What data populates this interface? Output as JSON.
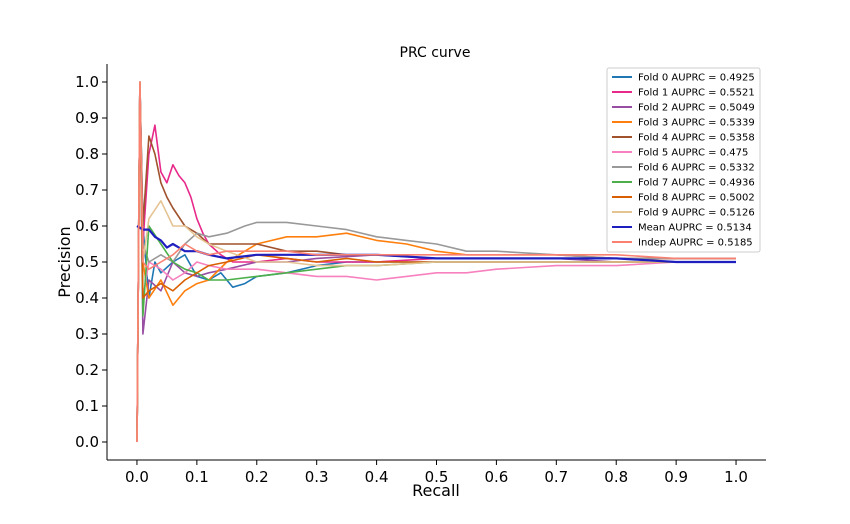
{
  "chart_data": {
    "type": "line",
    "title": "PRC curve",
    "xlabel": "Recall",
    "ylabel": "Precision",
    "xlim": [
      -0.05,
      1.05
    ],
    "ylim": [
      -0.05,
      1.05
    ],
    "xticks": [
      "0.0",
      "0.1",
      "0.2",
      "0.3",
      "0.4",
      "0.5",
      "0.6",
      "0.7",
      "0.8",
      "0.9",
      "1.0"
    ],
    "yticks": [
      "0.0",
      "0.1",
      "0.2",
      "0.3",
      "0.4",
      "0.5",
      "0.6",
      "0.7",
      "0.8",
      "0.9",
      "1.0"
    ],
    "grid": false,
    "legend_position": "top-right",
    "series": [
      {
        "name": "Fold 0 AUPRC = 0.4925",
        "color": "#1f77b4",
        "x": [
          0,
          0.005,
          0.01,
          0.02,
          0.03,
          0.04,
          0.06,
          0.08,
          0.1,
          0.12,
          0.14,
          0.16,
          0.18,
          0.2,
          0.25,
          0.3,
          0.35,
          0.4,
          0.5,
          0.6,
          0.7,
          0.8,
          0.9,
          1.0
        ],
        "y": [
          0.0,
          1.0,
          0.6,
          0.4,
          0.5,
          0.47,
          0.5,
          0.52,
          0.46,
          0.45,
          0.47,
          0.43,
          0.44,
          0.46,
          0.47,
          0.49,
          0.5,
          0.5,
          0.5,
          0.5,
          0.5,
          0.5,
          0.5,
          0.5
        ]
      },
      {
        "name": "Fold 1 AUPRC = 0.5521",
        "color": "#e7298a",
        "x": [
          0,
          0.005,
          0.01,
          0.02,
          0.03,
          0.04,
          0.05,
          0.06,
          0.07,
          0.08,
          0.09,
          0.1,
          0.11,
          0.12,
          0.14,
          0.16,
          0.2,
          0.25,
          0.3,
          0.4,
          0.5,
          0.6,
          0.7,
          0.8,
          0.9,
          1.0
        ],
        "y": [
          0.0,
          1.0,
          0.55,
          0.8,
          0.88,
          0.75,
          0.72,
          0.77,
          0.74,
          0.72,
          0.68,
          0.62,
          0.58,
          0.55,
          0.52,
          0.5,
          0.5,
          0.51,
          0.5,
          0.5,
          0.51,
          0.51,
          0.51,
          0.51,
          0.51,
          0.51
        ]
      },
      {
        "name": "Fold 2 AUPRC = 0.5049",
        "color": "#984ea3",
        "x": [
          0,
          0.005,
          0.01,
          0.02,
          0.04,
          0.06,
          0.08,
          0.1,
          0.12,
          0.15,
          0.2,
          0.25,
          0.3,
          0.4,
          0.5,
          0.6,
          0.7,
          0.8,
          0.9,
          1.0
        ],
        "y": [
          0.0,
          1.0,
          0.3,
          0.45,
          0.42,
          0.5,
          0.47,
          0.46,
          0.47,
          0.48,
          0.5,
          0.5,
          0.51,
          0.52,
          0.51,
          0.51,
          0.51,
          0.5,
          0.5,
          0.5
        ]
      },
      {
        "name": "Fold 3 AUPRC = 0.5339",
        "color": "#ff7f0e",
        "x": [
          0,
          0.005,
          0.01,
          0.02,
          0.04,
          0.06,
          0.08,
          0.1,
          0.12,
          0.15,
          0.2,
          0.25,
          0.3,
          0.35,
          0.4,
          0.45,
          0.5,
          0.55,
          0.6,
          0.7,
          0.8,
          0.9,
          1.0
        ],
        "y": [
          0.0,
          1.0,
          0.5,
          0.4,
          0.45,
          0.38,
          0.42,
          0.44,
          0.45,
          0.5,
          0.55,
          0.57,
          0.57,
          0.58,
          0.56,
          0.55,
          0.53,
          0.52,
          0.52,
          0.52,
          0.51,
          0.51,
          0.51
        ]
      },
      {
        "name": "Fold 4 AUPRC = 0.5358",
        "color": "#a0522d",
        "x": [
          0,
          0.005,
          0.01,
          0.02,
          0.03,
          0.04,
          0.05,
          0.06,
          0.08,
          0.1,
          0.12,
          0.15,
          0.2,
          0.25,
          0.3,
          0.35,
          0.4,
          0.5,
          0.6,
          0.7,
          0.8,
          0.9,
          1.0
        ],
        "y": [
          0.0,
          1.0,
          0.6,
          0.85,
          0.8,
          0.72,
          0.68,
          0.65,
          0.6,
          0.58,
          0.55,
          0.55,
          0.55,
          0.53,
          0.53,
          0.52,
          0.52,
          0.51,
          0.51,
          0.51,
          0.51,
          0.51,
          0.51
        ]
      },
      {
        "name": "Fold 5 AUPRC = 0.475",
        "color": "#f781bf",
        "x": [
          0,
          0.005,
          0.01,
          0.02,
          0.04,
          0.06,
          0.08,
          0.1,
          0.12,
          0.15,
          0.2,
          0.25,
          0.3,
          0.35,
          0.4,
          0.45,
          0.5,
          0.55,
          0.6,
          0.7,
          0.8,
          0.9,
          1.0
        ],
        "y": [
          0.0,
          1.0,
          0.4,
          0.5,
          0.48,
          0.45,
          0.47,
          0.5,
          0.49,
          0.48,
          0.48,
          0.47,
          0.46,
          0.46,
          0.45,
          0.46,
          0.47,
          0.47,
          0.48,
          0.49,
          0.49,
          0.5,
          0.5
        ]
      },
      {
        "name": "Fold 6 AUPRC = 0.5332",
        "color": "#999999",
        "x": [
          0,
          0.005,
          0.01,
          0.02,
          0.04,
          0.06,
          0.08,
          0.1,
          0.12,
          0.15,
          0.18,
          0.2,
          0.25,
          0.3,
          0.35,
          0.4,
          0.45,
          0.5,
          0.55,
          0.6,
          0.7,
          0.8,
          0.9,
          1.0
        ],
        "y": [
          0.0,
          1.0,
          0.55,
          0.5,
          0.52,
          0.5,
          0.55,
          0.58,
          0.57,
          0.58,
          0.6,
          0.61,
          0.61,
          0.6,
          0.59,
          0.57,
          0.56,
          0.55,
          0.53,
          0.53,
          0.52,
          0.51,
          0.51,
          0.51
        ]
      },
      {
        "name": "Fold 7 AUPRC = 0.4936",
        "color": "#4daf4a",
        "x": [
          0,
          0.005,
          0.01,
          0.02,
          0.04,
          0.06,
          0.08,
          0.1,
          0.12,
          0.15,
          0.2,
          0.25,
          0.3,
          0.35,
          0.4,
          0.5,
          0.6,
          0.7,
          0.8,
          0.9,
          1.0
        ],
        "y": [
          0.0,
          1.0,
          0.35,
          0.6,
          0.55,
          0.5,
          0.48,
          0.47,
          0.45,
          0.45,
          0.46,
          0.47,
          0.48,
          0.49,
          0.49,
          0.5,
          0.5,
          0.5,
          0.5,
          0.5,
          0.5
        ]
      },
      {
        "name": "Fold 8 AUPRC = 0.5002",
        "color": "#d95f02",
        "x": [
          0,
          0.005,
          0.01,
          0.02,
          0.04,
          0.06,
          0.08,
          0.1,
          0.12,
          0.15,
          0.2,
          0.25,
          0.3,
          0.35,
          0.4,
          0.5,
          0.6,
          0.7,
          0.8,
          0.9,
          1.0
        ],
        "y": [
          0.0,
          1.0,
          0.4,
          0.42,
          0.44,
          0.42,
          0.45,
          0.47,
          0.49,
          0.5,
          0.52,
          0.51,
          0.5,
          0.51,
          0.5,
          0.5,
          0.5,
          0.5,
          0.5,
          0.5,
          0.5
        ]
      },
      {
        "name": "Fold 9 AUPRC = 0.5126",
        "color": "#e5c494",
        "x": [
          0,
          0.005,
          0.01,
          0.02,
          0.04,
          0.06,
          0.08,
          0.1,
          0.12,
          0.15,
          0.2,
          0.25,
          0.3,
          0.35,
          0.4,
          0.5,
          0.6,
          0.7,
          0.8,
          0.9,
          1.0
        ],
        "y": [
          0.0,
          1.0,
          0.5,
          0.62,
          0.67,
          0.6,
          0.6,
          0.57,
          0.55,
          0.53,
          0.5,
          0.5,
          0.49,
          0.49,
          0.49,
          0.5,
          0.5,
          0.5,
          0.5,
          0.5,
          0.5
        ]
      },
      {
        "name": "Mean AUPRC = 0.5134",
        "color": "#1f1fbf",
        "x": [
          0,
          0.01,
          0.02,
          0.03,
          0.04,
          0.05,
          0.06,
          0.07,
          0.08,
          0.1,
          0.12,
          0.15,
          0.2,
          0.25,
          0.3,
          0.4,
          0.5,
          0.6,
          0.7,
          0.8,
          0.9,
          1.0
        ],
        "y": [
          0.6,
          0.59,
          0.59,
          0.57,
          0.56,
          0.54,
          0.55,
          0.54,
          0.53,
          0.53,
          0.52,
          0.51,
          0.52,
          0.52,
          0.52,
          0.52,
          0.51,
          0.51,
          0.51,
          0.51,
          0.5,
          0.5
        ]
      },
      {
        "name": "Indep AUPRC = 0.5185",
        "color": "#fa8072",
        "x": [
          0,
          0.005,
          0.01,
          0.02,
          0.04,
          0.06,
          0.08,
          0.1,
          0.12,
          0.15,
          0.2,
          0.25,
          0.3,
          0.35,
          0.4,
          0.5,
          0.6,
          0.7,
          0.8,
          0.9,
          1.0
        ],
        "y": [
          0.0,
          1.0,
          0.5,
          0.48,
          0.5,
          0.52,
          0.55,
          0.53,
          0.52,
          0.53,
          0.53,
          0.53,
          0.52,
          0.52,
          0.52,
          0.52,
          0.52,
          0.52,
          0.52,
          0.51,
          0.51
        ]
      }
    ]
  }
}
